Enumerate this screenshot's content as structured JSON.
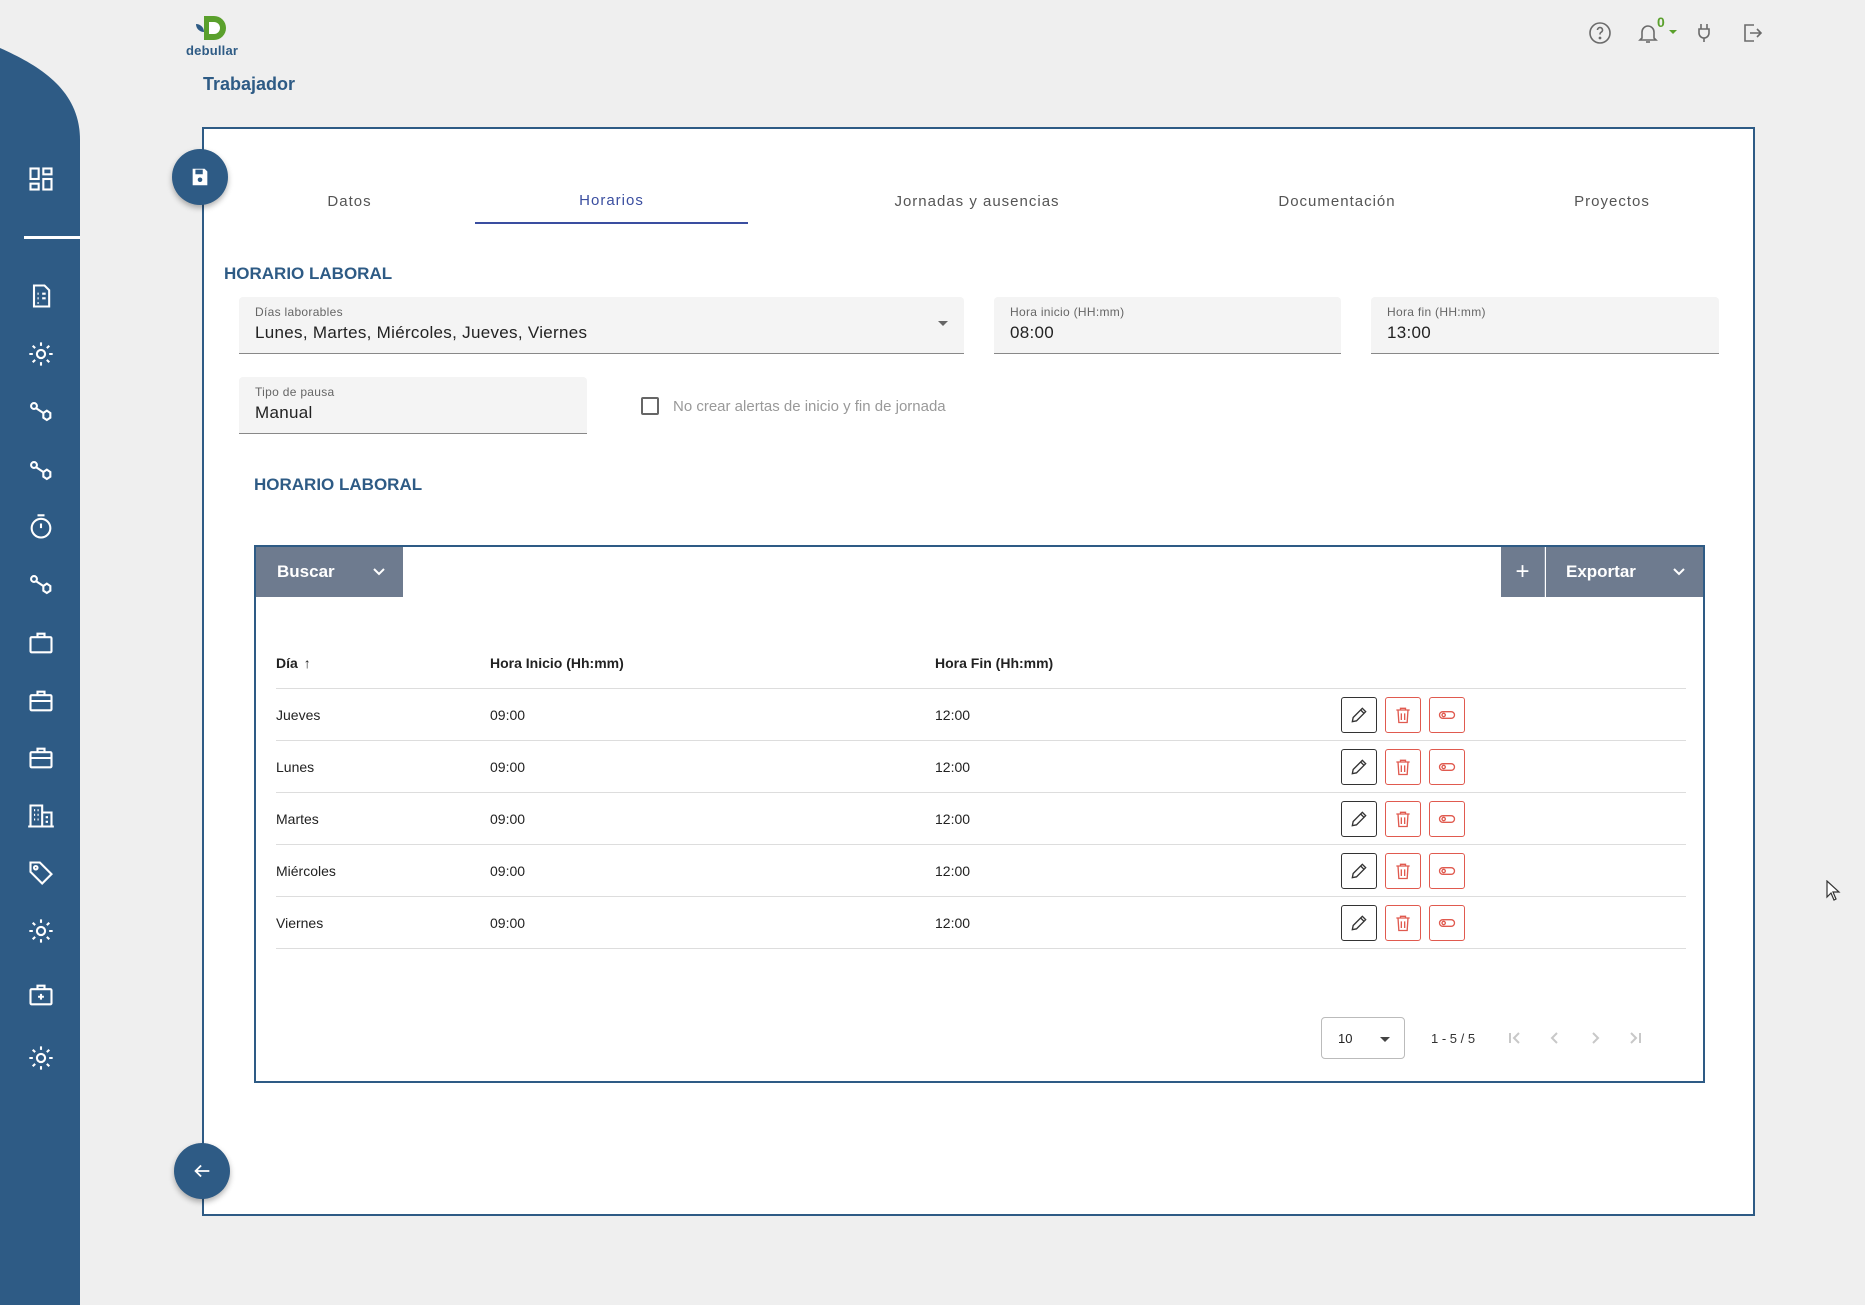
{
  "app": {
    "logo_text": "debullar",
    "page_title": "Trabajador"
  },
  "topbar": {
    "notification_count": "0",
    "icons": [
      "help-icon",
      "bell-icon",
      "plug-icon",
      "logout-icon"
    ]
  },
  "sidebar": {
    "icons": [
      "dashboard-icon",
      "document-icon",
      "gear-icon",
      "nodes-icon",
      "nodes-icon",
      "timer-icon",
      "nodes-icon",
      "briefcase-icon",
      "briefcase-icon",
      "briefcase-icon",
      "building-icon",
      "tag-icon",
      "gear-icon",
      "medical-case-icon",
      "gear-icon"
    ]
  },
  "tabs": [
    {
      "label": "Datos",
      "active": false
    },
    {
      "label": "Horarios",
      "active": true
    },
    {
      "label": "Jornadas y ausencias",
      "active": false
    },
    {
      "label": "Documentación",
      "active": false
    },
    {
      "label": "Proyectos",
      "active": false
    }
  ],
  "form": {
    "section_title": "HORARIO LABORAL",
    "dias": {
      "label": "Días laborables",
      "value": "Lunes, Martes, Miércoles, Jueves, Viernes"
    },
    "hora_inicio": {
      "label": "Hora inicio (HH:mm)",
      "value": "08:00"
    },
    "hora_fin": {
      "label": "Hora fin (HH:mm)",
      "value": "13:00"
    },
    "tipo_pausa": {
      "label": "Tipo de pausa",
      "value": "Manual"
    },
    "checkbox_label": "No crear alertas de inicio y fin de jornada"
  },
  "table_section": {
    "title": "HORARIO LABORAL",
    "search_label": "Buscar",
    "add_label": "+",
    "export_label": "Exportar",
    "columns": [
      "Día",
      "Hora Inicio (Hh:mm)",
      "Hora Fin (Hh:mm)"
    ],
    "sort_indicator": "↑",
    "rows": [
      {
        "dia": "Jueves",
        "inicio": "09:00",
        "fin": "12:00"
      },
      {
        "dia": "Lunes",
        "inicio": "09:00",
        "fin": "12:00"
      },
      {
        "dia": "Martes",
        "inicio": "09:00",
        "fin": "12:00"
      },
      {
        "dia": "Miércoles",
        "inicio": "09:00",
        "fin": "12:00"
      },
      {
        "dia": "Viernes",
        "inicio": "09:00",
        "fin": "12:00"
      }
    ],
    "paginator": {
      "page_size": "10",
      "range": "1 - 5 / 5"
    }
  },
  "colors": {
    "primary": "#2e5b85",
    "accent": "#3a4ea0",
    "danger": "#e05a4f",
    "logo_green": "#5aa02c"
  }
}
